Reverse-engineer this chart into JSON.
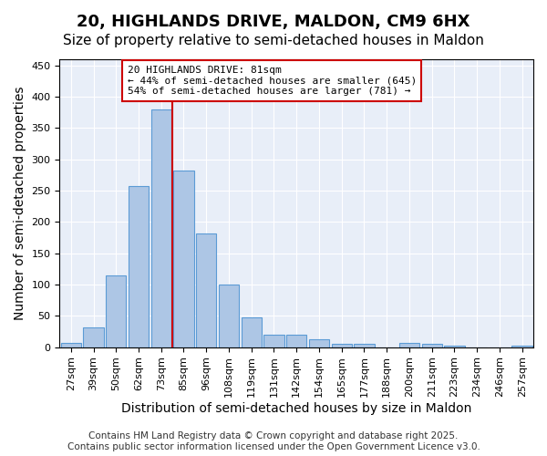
{
  "title": "20, HIGHLANDS DRIVE, MALDON, CM9 6HX",
  "subtitle": "Size of property relative to semi-detached houses in Maldon",
  "xlabel": "Distribution of semi-detached houses by size in Maldon",
  "ylabel": "Number of semi-detached properties",
  "categories": [
    "27sqm",
    "39sqm",
    "50sqm",
    "62sqm",
    "73sqm",
    "85sqm",
    "96sqm",
    "108sqm",
    "119sqm",
    "131sqm",
    "142sqm",
    "154sqm",
    "165sqm",
    "177sqm",
    "188sqm",
    "200sqm",
    "211sqm",
    "223sqm",
    "234sqm",
    "246sqm",
    "257sqm"
  ],
  "values": [
    7,
    32,
    114,
    258,
    380,
    282,
    182,
    100,
    47,
    20,
    20,
    12,
    6,
    5,
    0,
    7,
    6,
    2,
    0,
    0,
    3
  ],
  "bar_color": "#adc6e5",
  "bar_edge_color": "#5b9bd5",
  "property_bin_index": 4,
  "property_label": "20 HIGHLANDS DRIVE: 81sqm",
  "annotation_line1": "← 44% of semi-detached houses are smaller (645)",
  "annotation_line2": "54% of semi-detached houses are larger (781) →",
  "annotation_box_color": "#ffffff",
  "annotation_box_edge": "#cc0000",
  "vline_color": "#cc0000",
  "ylim": [
    0,
    460
  ],
  "yticks": [
    0,
    50,
    100,
    150,
    200,
    250,
    300,
    350,
    400,
    450
  ],
  "bg_color": "#e8eef8",
  "footer_line1": "Contains HM Land Registry data © Crown copyright and database right 2025.",
  "footer_line2": "Contains public sector information licensed under the Open Government Licence v3.0.",
  "title_fontsize": 13,
  "subtitle_fontsize": 11,
  "xlabel_fontsize": 10,
  "ylabel_fontsize": 10,
  "tick_fontsize": 8,
  "footer_fontsize": 7.5
}
